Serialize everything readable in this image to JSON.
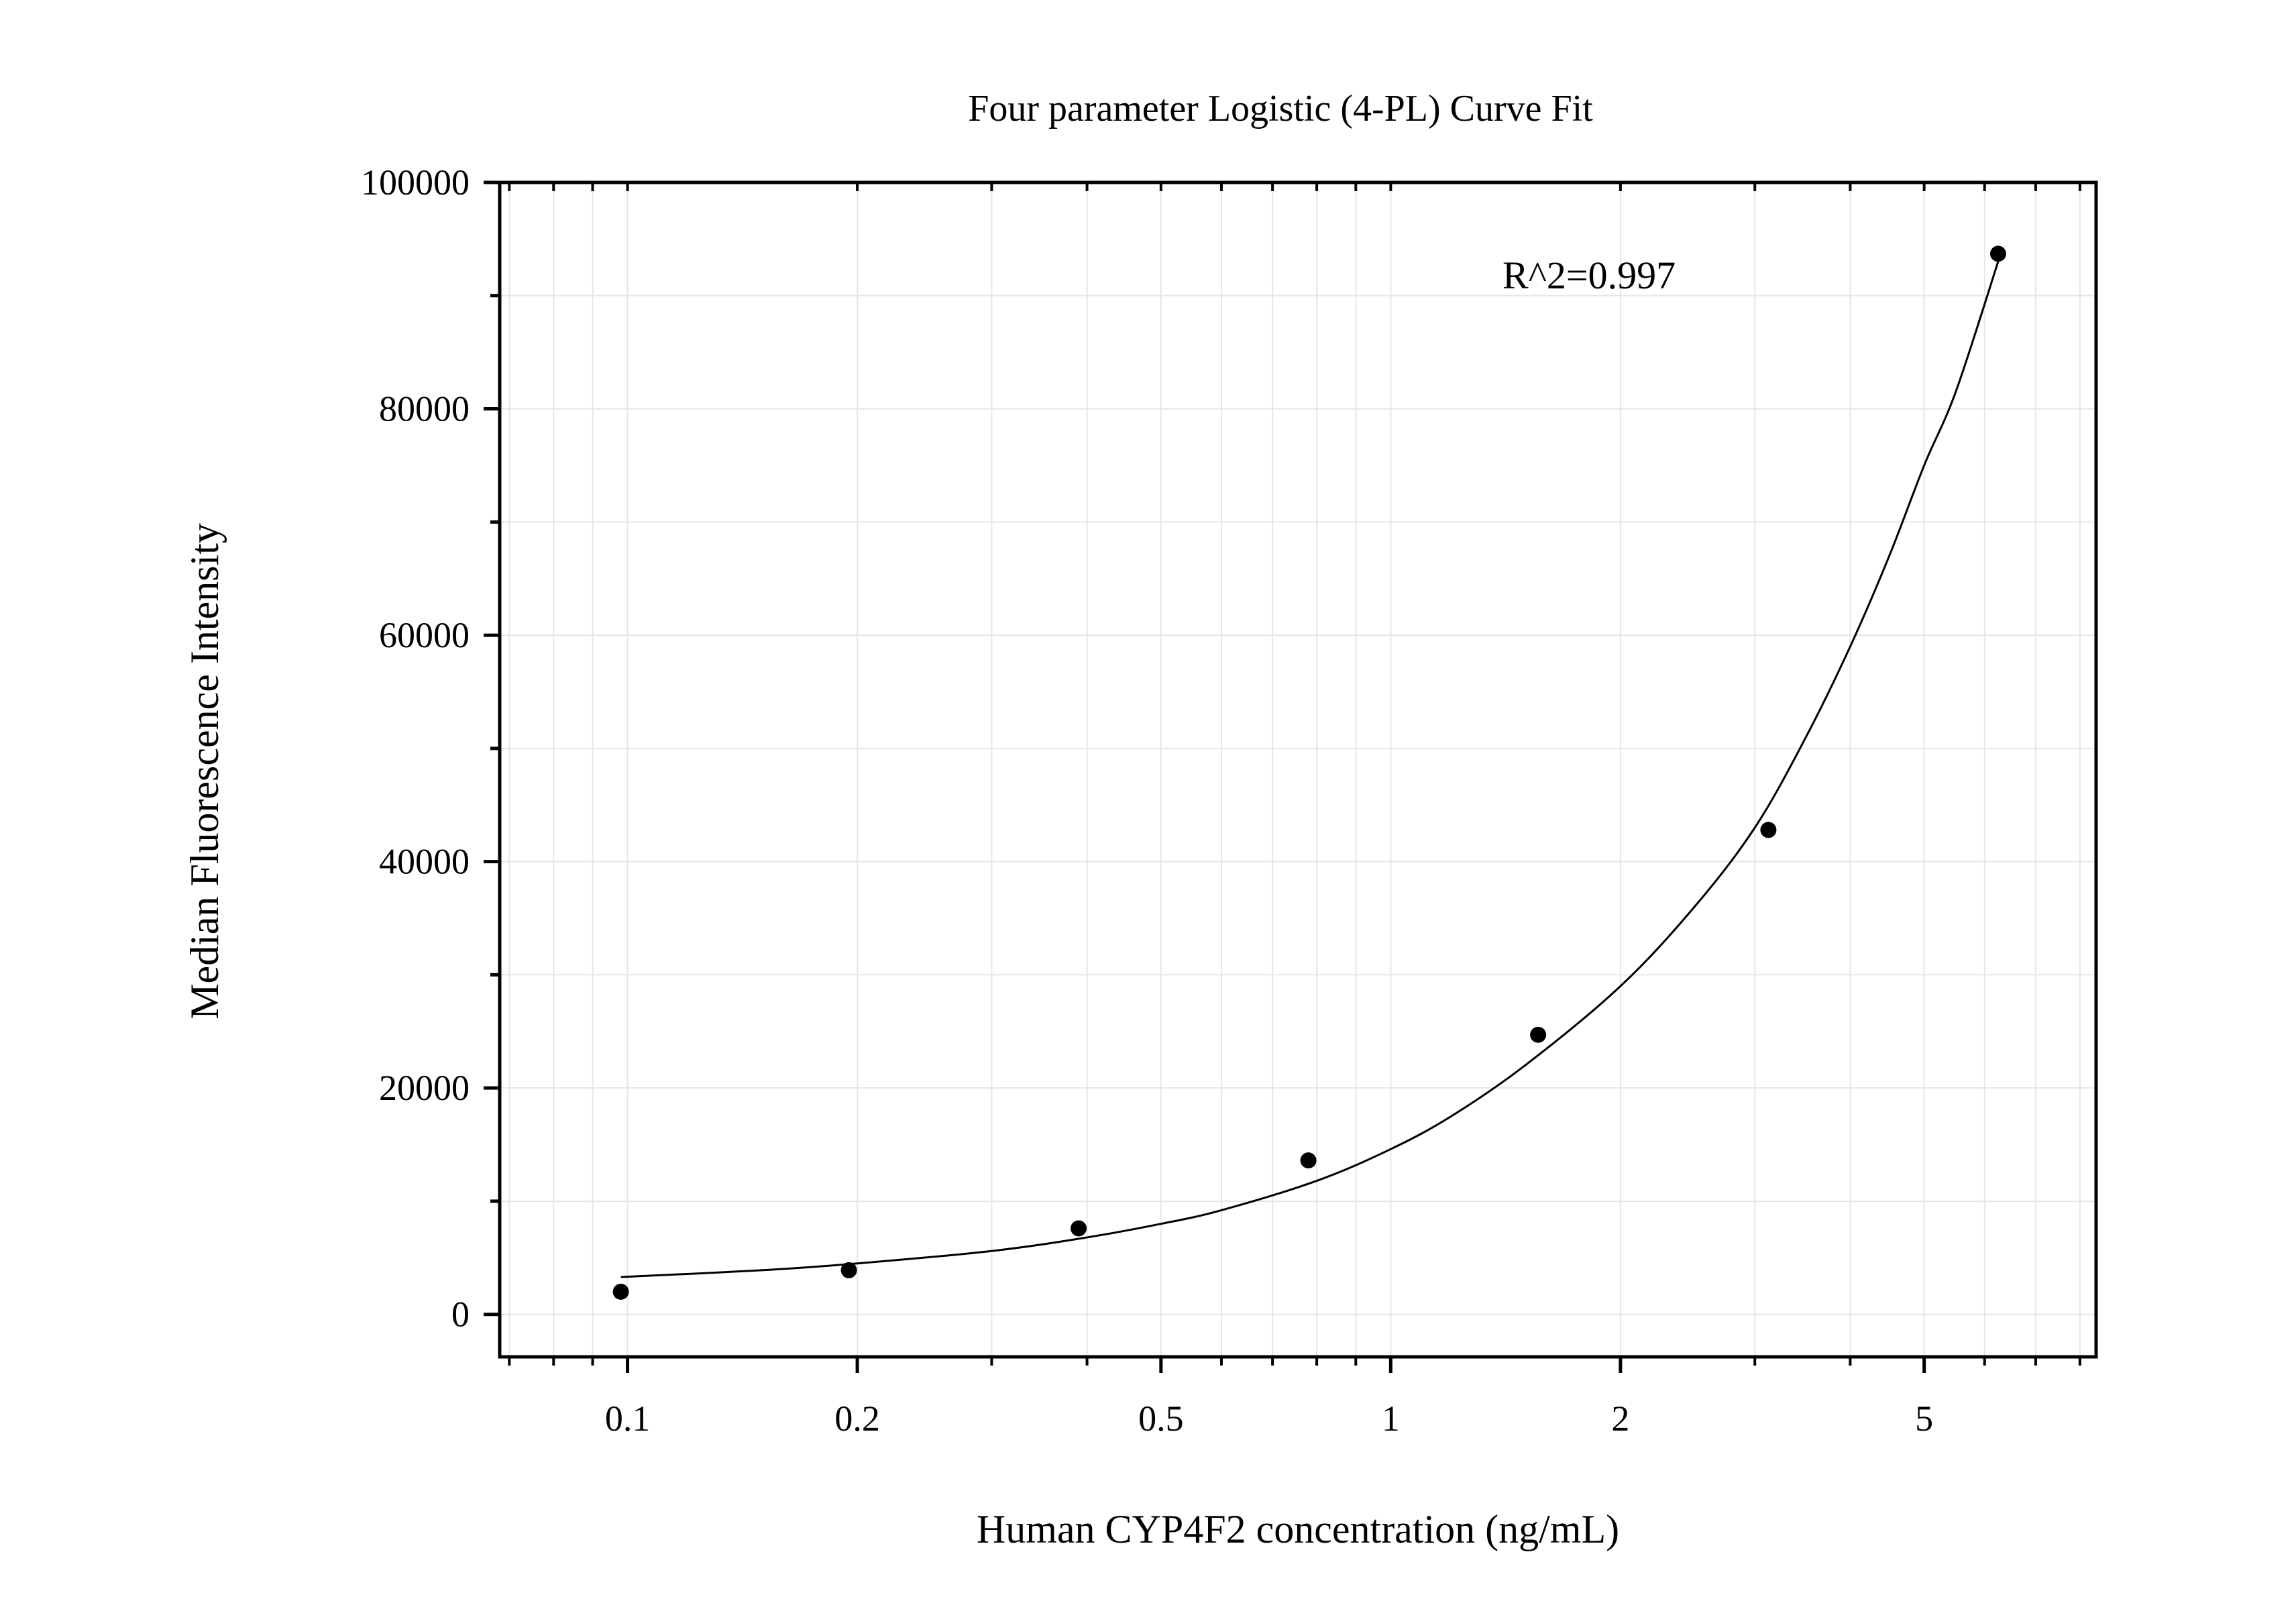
{
  "chart_data": {
    "type": "scatter",
    "title": "Four parameter Logistic (4-PL) Curve Fit",
    "xlabel": "Human CYP4F2 concentration (ng/mL)",
    "ylabel": "Median Fluorescence Intensity",
    "x_scale": "log",
    "xlim": [
      0.068,
      8.4
    ],
    "ylim": [
      -3750,
      100000
    ],
    "x_ticks": [
      0.1,
      0.2,
      0.5,
      1,
      2,
      5
    ],
    "x_tick_labels": [
      "0.1",
      "0.2",
      "0.5",
      "1",
      "2",
      "5"
    ],
    "y_ticks": [
      0,
      20000,
      40000,
      60000,
      80000,
      100000
    ],
    "y_tick_labels": [
      "0",
      "20000",
      "40000",
      "60000",
      "80000",
      "100000"
    ],
    "grid": true,
    "annotation": "R^2=0.997",
    "series": [
      {
        "kind": "points",
        "x": [
          0.098,
          0.195,
          0.39,
          0.78,
          1.56,
          3.125,
          6.25
        ],
        "y": [
          2000,
          3900,
          7600,
          13600,
          24700,
          42800,
          93700
        ]
      },
      {
        "kind": "fit-curve",
        "x": [
          0.098,
          0.15,
          0.2,
          0.3,
          0.4,
          0.5,
          0.6,
          0.8,
          1.0,
          1.2,
          1.5,
          2.0,
          2.5,
          3.0,
          3.5,
          4.0,
          4.5,
          5.0,
          5.5,
          6.25
        ],
        "y": [
          3300,
          3900,
          4500,
          5600,
          6800,
          8000,
          9200,
          11800,
          14600,
          17500,
          22000,
          29000,
          36000,
          43000,
          51000,
          59000,
          67000,
          75000,
          81500,
          93000
        ]
      }
    ],
    "colors": {
      "points": "#000000",
      "curve": "#000000",
      "grid": "#e6e6e6"
    }
  }
}
